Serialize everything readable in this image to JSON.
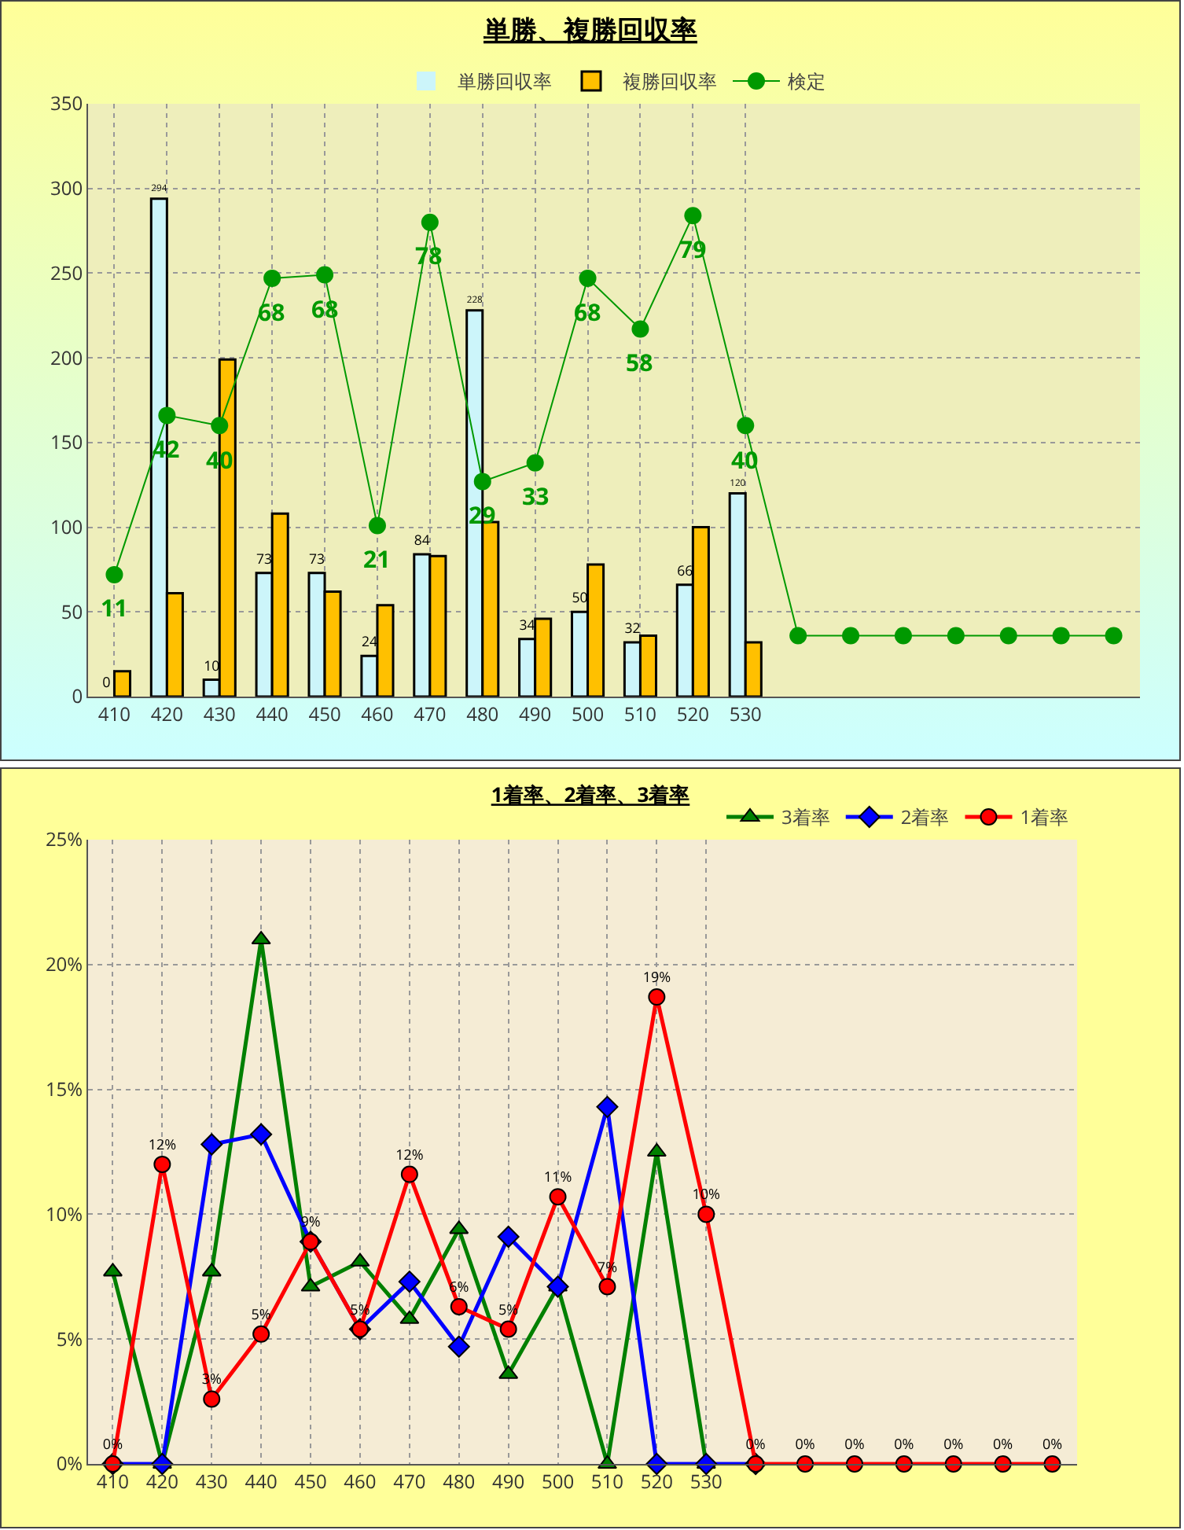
{
  "chart_data": [
    {
      "type": "bar",
      "title": "単勝、複勝回収率",
      "categories": [
        "410",
        "420",
        "430",
        "440",
        "450",
        "460",
        "470",
        "480",
        "490",
        "500",
        "510",
        "520",
        "530",
        null,
        null,
        null,
        null,
        null,
        null,
        null
      ],
      "series": [
        {
          "name": "検定",
          "type": "line",
          "color": "#009900",
          "marker": "circle",
          "values": [
            72,
            166,
            160,
            247,
            249,
            101,
            280,
            127,
            138,
            247,
            217,
            284,
            160,
            36,
            36,
            36,
            36,
            36,
            36,
            36
          ]
        },
        {
          "name": "単勝回収率",
          "color": "#ccf5fa",
          "values": [
            0,
            294,
            10,
            73,
            73,
            24,
            84,
            228,
            34,
            50,
            32,
            66,
            120,
            null,
            null,
            null,
            null,
            null,
            null,
            null
          ],
          "value_labels": [
            "0",
            "294",
            "10",
            "73",
            "73",
            "24",
            "84",
            "228",
            "34",
            "50",
            "32",
            "66",
            "120",
            null,
            null,
            null,
            null,
            null,
            null,
            null
          ]
        },
        {
          "name": "複勝回収率",
          "color": "#ffc000",
          "values": [
            15,
            61,
            199,
            108,
            62,
            54,
            83,
            103,
            46,
            78,
            36,
            100,
            32,
            null,
            null,
            null,
            null,
            null,
            null,
            null
          ]
        }
      ],
      "annotations": [
        {
          "text": "11",
          "x": "410",
          "y": 72
        },
        {
          "text": "42",
          "x": "420",
          "y": 166
        },
        {
          "text": "40",
          "x": "430",
          "y": 160
        },
        {
          "text": "68",
          "x": "440",
          "y": 247
        },
        {
          "text": "68",
          "x": "450",
          "y": 249
        },
        {
          "text": "21",
          "x": "460",
          "y": 101
        },
        {
          "text": "78",
          "x": "470",
          "y": 280
        },
        {
          "text": "29",
          "x": "480",
          "y": 127
        },
        {
          "text": "33",
          "x": "490",
          "y": 138
        },
        {
          "text": "68",
          "x": "500",
          "y": 247
        },
        {
          "text": "58",
          "x": "510",
          "y": 217
        },
        {
          "text": "79",
          "x": "520",
          "y": 284
        },
        {
          "text": "40",
          "x": "530",
          "y": 160
        }
      ],
      "ylim": [
        0,
        350
      ],
      "yticks": [
        0,
        50,
        100,
        150,
        200,
        250,
        300,
        350
      ],
      "grid": true,
      "legend": "top"
    },
    {
      "type": "line",
      "title": "1着率、2着率、3着率",
      "categories": [
        "410",
        "420",
        "430",
        "440",
        "450",
        "460",
        "470",
        "480",
        "490",
        "500",
        "510",
        "520",
        "530",
        null,
        null,
        null,
        null,
        null,
        null,
        null
      ],
      "series": [
        {
          "name": "3着率",
          "color": "#008000",
          "marker": "triangle",
          "values": [
            7.7,
            0,
            7.7,
            21,
            7.1,
            8.1,
            5.8,
            9.4,
            3.6,
            7.1,
            0,
            12.5,
            0,
            null,
            null,
            null,
            null,
            null,
            null,
            null
          ]
        },
        {
          "name": "2着率",
          "color": "#0000ff",
          "marker": "diamond",
          "values": [
            0,
            0,
            12.8,
            13.2,
            8.9,
            5.4,
            7.3,
            4.7,
            9.1,
            7.1,
            14.3,
            0,
            0,
            0,
            null,
            null,
            null,
            null,
            null,
            null
          ]
        },
        {
          "name": "1着率",
          "color": "#ff0000",
          "marker": "circle",
          "values": [
            0,
            12,
            2.6,
            5.2,
            8.9,
            5.4,
            11.6,
            6.3,
            5.4,
            10.7,
            7.1,
            18.7,
            10,
            0,
            0,
            0,
            0,
            0,
            0,
            0
          ],
          "value_labels": [
            "0%",
            "12%",
            "3%",
            "5%",
            "9%",
            "5%",
            "12%",
            "6%",
            "5%",
            "11%",
            "7%",
            "19%",
            "10%",
            "0%",
            "0%",
            "0%",
            "0%",
            "0%",
            "0%",
            "0%"
          ]
        }
      ],
      "ylim": [
        0,
        25
      ],
      "yticks": [
        {
          "value": 0,
          "label": "0%"
        },
        {
          "value": 5,
          "label": "5%"
        },
        {
          "value": 10,
          "label": "10%"
        },
        {
          "value": 15,
          "label": "15%"
        },
        {
          "value": 20,
          "label": "20%"
        },
        {
          "value": 25,
          "label": "25%"
        }
      ],
      "grid": true,
      "legend": "top right"
    }
  ]
}
